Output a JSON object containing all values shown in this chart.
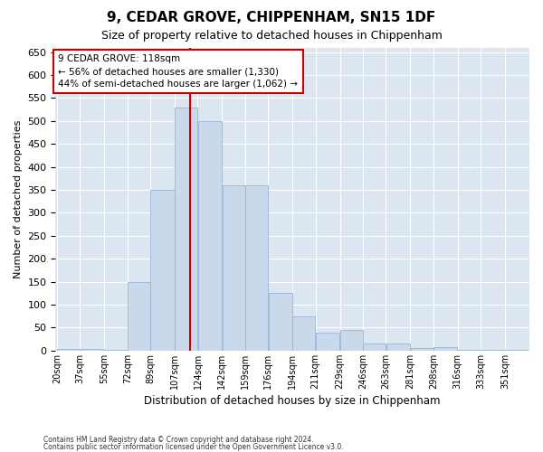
{
  "title": "9, CEDAR GROVE, CHIPPENHAM, SN15 1DF",
  "subtitle": "Size of property relative to detached houses in Chippenham",
  "xlabel": "Distribution of detached houses by size in Chippenham",
  "ylabel": "Number of detached properties",
  "bar_color": "#c8d9ec",
  "bar_edge_color": "#9ab4d4",
  "bg_color": "#dce6f1",
  "vline_color": "#cc0000",
  "vline_x": 118,
  "annotation_text": "9 CEDAR GROVE: 118sqm\n← 56% of detached houses are smaller (1,330)\n44% of semi-detached houses are larger (1,062) →",
  "footer1": "Contains HM Land Registry data © Crown copyright and database right 2024.",
  "footer2": "Contains public sector information licensed under the Open Government Licence v3.0.",
  "bin_edges": [
    20,
    37,
    55,
    72,
    89,
    107,
    124,
    142,
    159,
    176,
    194,
    211,
    229,
    246,
    263,
    281,
    298,
    316,
    333,
    351,
    368
  ],
  "values": [
    3,
    3,
    1,
    150,
    350,
    530,
    500,
    360,
    360,
    125,
    75,
    40,
    45,
    15,
    15,
    5,
    8,
    1,
    1,
    1
  ],
  "ylim": [
    0,
    660
  ],
  "yticks": [
    0,
    50,
    100,
    150,
    200,
    250,
    300,
    350,
    400,
    450,
    500,
    550,
    600,
    650
  ]
}
